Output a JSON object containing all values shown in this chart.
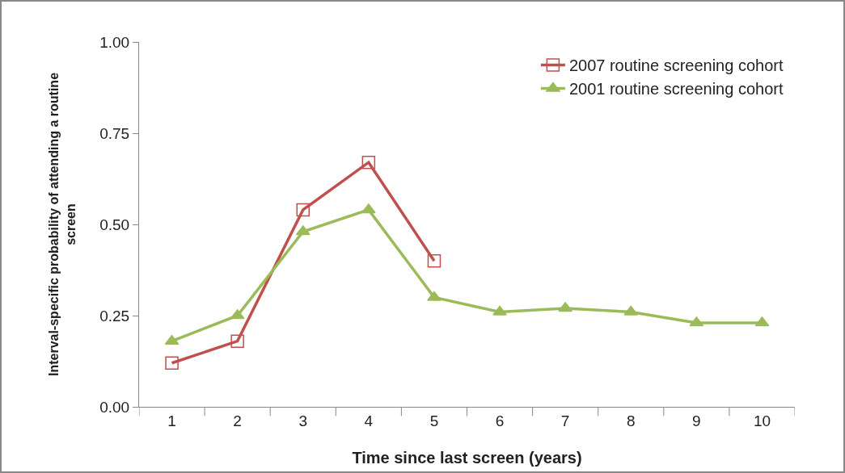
{
  "chart_data": {
    "type": "line",
    "xlabel": "Time since last screen (years)",
    "ylabel": "Interval-specific probability of attending a routine screen",
    "categories": [
      "1",
      "2",
      "3",
      "4",
      "5",
      "6",
      "7",
      "8",
      "9",
      "10"
    ],
    "series": [
      {
        "name": "2007 routine screening cohort",
        "color": "#c0504d",
        "marker": "square",
        "values": [
          0.12,
          0.18,
          0.54,
          0.67,
          0.4,
          null,
          null,
          null,
          null,
          null
        ]
      },
      {
        "name": "2001 routine screening cohort",
        "color": "#9bbb59",
        "marker": "triangle",
        "values": [
          0.18,
          0.25,
          0.48,
          0.54,
          0.3,
          0.26,
          0.27,
          0.26,
          0.23,
          0.23
        ]
      }
    ],
    "ylim": [
      0,
      1
    ],
    "yticks": [
      {
        "value": 0,
        "label": "0.00"
      },
      {
        "value": 0.25,
        "label": "0.25"
      },
      {
        "value": 0.5,
        "label": "0.50"
      },
      {
        "value": 0.75,
        "label": "0.75"
      },
      {
        "value": 1,
        "label": "1.00"
      }
    ],
    "grid": false,
    "legend": "top right",
    "line_style": "solid"
  }
}
